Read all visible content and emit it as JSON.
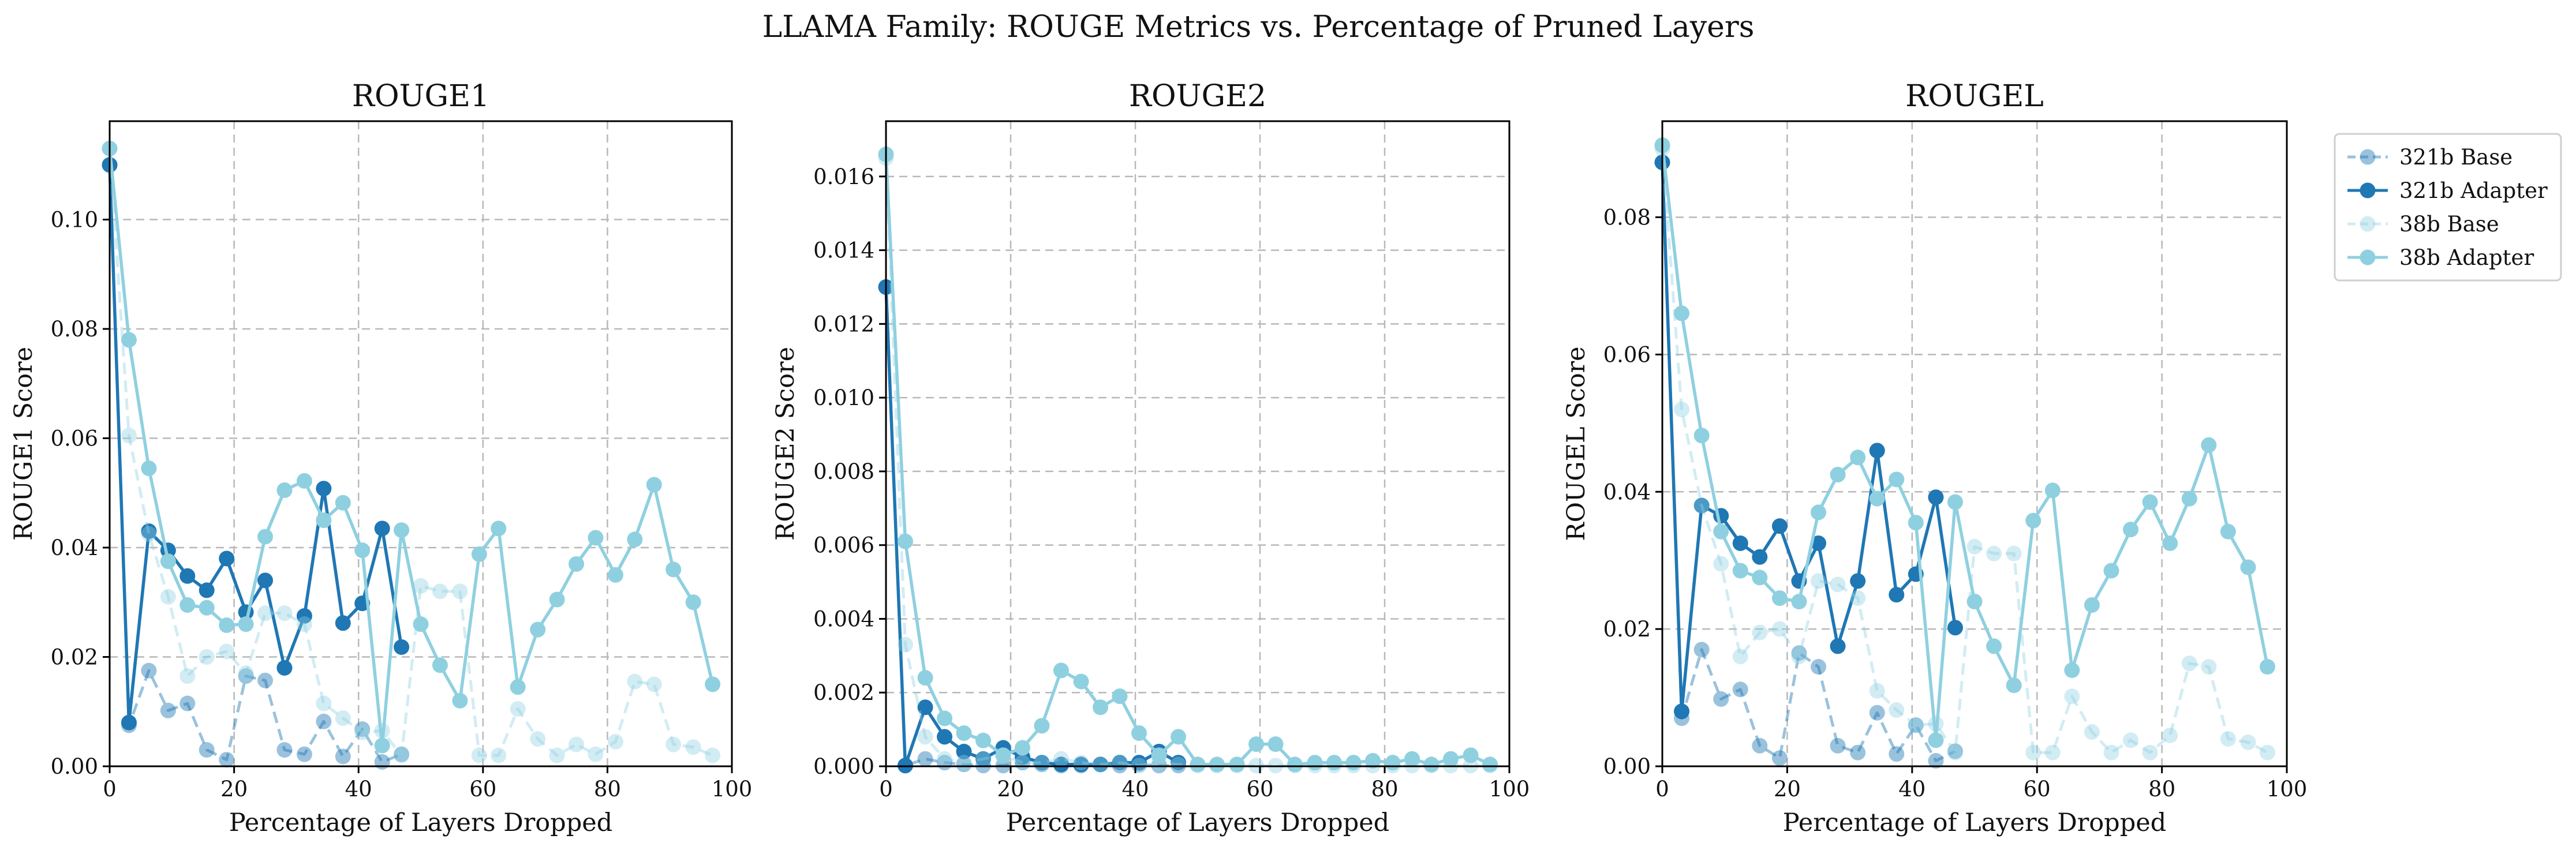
{
  "figure": {
    "title": "LLAMA Family: ROUGE Metrics vs. Percentage of Pruned Layers"
  },
  "colors": {
    "dark": "#1f77b4",
    "light": "#8fd0e0",
    "axis": "#000000",
    "grid": "#b8b8b8"
  },
  "legend": {
    "placement": "outside-right-top",
    "entries": [
      {
        "label": "321b Base",
        "color": "#1f77b4",
        "style": "dashed",
        "alpha": 0.45
      },
      {
        "label": "321b Adapter",
        "color": "#1f77b4",
        "style": "solid",
        "alpha": 1.0
      },
      {
        "label": "38b Base",
        "color": "#8fd0e0",
        "style": "dashed",
        "alpha": 0.4
      },
      {
        "label": "38b Adapter",
        "color": "#8fd0e0",
        "style": "solid",
        "alpha": 1.0
      }
    ]
  },
  "chart_data": [
    {
      "type": "line",
      "title": "ROUGE1",
      "xlabel": "Percentage of Layers Dropped",
      "ylabel": "ROUGE1 Score",
      "xlim": [
        0,
        100
      ],
      "ylim": [
        0,
        0.118
      ],
      "xticks": [
        0,
        20,
        40,
        60,
        80,
        100
      ],
      "yticks": [
        0.0,
        0.02,
        0.04,
        0.06,
        0.08,
        0.1
      ],
      "tick_labels_y": [
        "0.00",
        "0.02",
        "0.04",
        "0.06",
        "0.08",
        "0.10"
      ],
      "grid": true,
      "series": [
        {
          "name": "321b Base",
          "x": [
            0,
            3.1,
            6.3,
            9.4,
            12.5,
            15.6,
            18.8,
            21.9,
            25,
            28.1,
            31.3,
            34.4,
            37.5,
            40.6,
            43.8,
            46.9
          ],
          "y": [
            0.11,
            0.0075,
            0.0175,
            0.0102,
            0.0115,
            0.003,
            0.0012,
            0.0165,
            0.0157,
            0.003,
            0.0022,
            0.0082,
            0.0018,
            0.0068,
            0.0008,
            0.0022
          ]
        },
        {
          "name": "321b Adapter",
          "x": [
            0,
            3.1,
            6.3,
            9.4,
            12.5,
            15.6,
            18.8,
            21.9,
            25,
            28.1,
            31.3,
            34.4,
            37.5,
            40.6,
            43.8,
            46.9
          ],
          "y": [
            0.11,
            0.008,
            0.043,
            0.0395,
            0.0348,
            0.0322,
            0.038,
            0.0282,
            0.034,
            0.018,
            0.0275,
            0.0508,
            0.0262,
            0.0298,
            0.0435,
            0.0218
          ]
        },
        {
          "name": "38b Base",
          "x": [
            0,
            3.1,
            6.3,
            9.4,
            12.5,
            15.6,
            18.8,
            21.9,
            25,
            28.1,
            31.3,
            34.4,
            37.5,
            40.6,
            43.8,
            46.9,
            50,
            53.1,
            56.3,
            59.4,
            62.5,
            65.6,
            68.8,
            71.9,
            75,
            78.1,
            81.3,
            84.4,
            87.5,
            90.6,
            93.8,
            96.9
          ],
          "y": [
            0.113,
            0.0605,
            0.0425,
            0.031,
            0.0165,
            0.02,
            0.021,
            0.017,
            0.028,
            0.028,
            0.026,
            0.0115,
            0.0088,
            0.0062,
            0.0065,
            0.002,
            0.033,
            0.032,
            0.032,
            0.002,
            0.002,
            0.0105,
            0.005,
            0.002,
            0.004,
            0.0022,
            0.0045,
            0.0155,
            0.015,
            0.004,
            0.0035,
            0.002
          ]
        },
        {
          "name": "38b Adapter",
          "x": [
            0,
            3.1,
            6.3,
            9.4,
            12.5,
            15.6,
            18.8,
            21.9,
            25,
            28.1,
            31.3,
            34.4,
            37.5,
            40.6,
            43.8,
            46.9,
            50,
            53.1,
            56.3,
            59.4,
            62.5,
            65.6,
            68.8,
            71.9,
            75,
            78.1,
            81.3,
            84.4,
            87.5,
            90.6,
            93.8,
            96.9
          ],
          "y": [
            0.113,
            0.078,
            0.0545,
            0.0375,
            0.0295,
            0.029,
            0.0258,
            0.026,
            0.042,
            0.0505,
            0.0522,
            0.045,
            0.0482,
            0.0395,
            0.0038,
            0.0432,
            0.026,
            0.0185,
            0.012,
            0.0388,
            0.0435,
            0.0145,
            0.025,
            0.0305,
            0.037,
            0.0418,
            0.035,
            0.0415,
            0.0515,
            0.036,
            0.03,
            0.015
          ]
        }
      ]
    },
    {
      "type": "line",
      "title": "ROUGE2",
      "xlabel": "Percentage of Layers Dropped",
      "ylabel": "ROUGE2 Score",
      "xlim": [
        0,
        100
      ],
      "ylim": [
        0,
        0.0175
      ],
      "xticks": [
        0,
        20,
        40,
        60,
        80,
        100
      ],
      "yticks": [
        0.0,
        0.002,
        0.004,
        0.006,
        0.008,
        0.01,
        0.012,
        0.014,
        0.016
      ],
      "tick_labels_y": [
        "0.000",
        "0.002",
        "0.004",
        "0.006",
        "0.008",
        "0.010",
        "0.012",
        "0.014",
        "0.016"
      ],
      "grid": true,
      "series": [
        {
          "name": "321b Base",
          "x": [
            0,
            3.1,
            6.3,
            9.4,
            12.5,
            15.6,
            18.8,
            21.9,
            25,
            28.1,
            31.3,
            34.4,
            37.5,
            40.6,
            43.8,
            46.9
          ],
          "y": [
            0.013,
            2e-05,
            0.0002,
            0.0001,
            5e-05,
            2e-05,
            2e-05,
            0.0001,
            5e-05,
            2e-05,
            2e-05,
            5e-05,
            2e-05,
            5e-05,
            2e-05,
            2e-05
          ]
        },
        {
          "name": "321b Adapter",
          "x": [
            0,
            3.1,
            6.3,
            9.4,
            12.5,
            15.6,
            18.8,
            21.9,
            25,
            28.1,
            31.3,
            34.4,
            37.5,
            40.6,
            43.8,
            46.9
          ],
          "y": [
            0.013,
            2e-05,
            0.0016,
            0.0008,
            0.0004,
            0.0002,
            0.0005,
            0.00025,
            0.0001,
            5e-05,
            5e-05,
            5e-05,
            0.0001,
            0.0001,
            0.0004,
            0.0001
          ]
        },
        {
          "name": "38b Base",
          "x": [
            0,
            3.1,
            6.3,
            9.4,
            12.5,
            15.6,
            18.8,
            21.9,
            25,
            28.1,
            31.3,
            34.4,
            37.5,
            40.6,
            43.8,
            46.9,
            50,
            53.1,
            56.3,
            59.4,
            62.5,
            65.6,
            68.8,
            71.9,
            75,
            78.1,
            81.3,
            84.4,
            87.5,
            90.6,
            93.8,
            96.9
          ],
          "y": [
            0.0165,
            0.0033,
            0.0008,
            0.0002,
            0.0001,
            0.0002,
            0.0003,
            0.0001,
            0.0001,
            0.0002,
            0.0001,
            5e-05,
            0.0001,
            2e-05,
            0.0001,
            5e-05,
            2e-05,
            2e-05,
            2e-05,
            2e-05,
            2e-05,
            2e-05,
            2e-05,
            2e-05,
            2e-05,
            2e-05,
            2e-05,
            2e-05,
            2e-05,
            2e-05,
            2e-05,
            2e-05
          ]
        },
        {
          "name": "38b Adapter",
          "x": [
            0,
            3.1,
            6.3,
            9.4,
            12.5,
            15.6,
            18.8,
            21.9,
            25,
            28.1,
            31.3,
            34.4,
            37.5,
            40.6,
            43.8,
            46.9,
            50,
            53.1,
            56.3,
            59.4,
            62.5,
            65.6,
            68.8,
            71.9,
            75,
            78.1,
            81.3,
            84.4,
            87.5,
            90.6,
            93.8,
            96.9
          ],
          "y": [
            0.0166,
            0.0061,
            0.0024,
            0.0013,
            0.0009,
            0.0007,
            0.0003,
            0.0005,
            0.0011,
            0.0026,
            0.0023,
            0.0016,
            0.0019,
            0.0009,
            0.0003,
            0.0008,
            5e-05,
            5e-05,
            5e-05,
            0.0006,
            0.0006,
            5e-05,
            0.0001,
            0.0001,
            0.0001,
            0.00015,
            0.0001,
            0.0002,
            5e-05,
            0.0002,
            0.0003,
            5e-05
          ]
        }
      ]
    },
    {
      "type": "line",
      "title": "ROUGEL",
      "xlabel": "Percentage of Layers Dropped",
      "ylabel": "ROUGEL Score",
      "xlim": [
        0,
        100
      ],
      "ylim": [
        0,
        0.094
      ],
      "xticks": [
        0,
        20,
        40,
        60,
        80,
        100
      ],
      "yticks": [
        0.0,
        0.02,
        0.04,
        0.06,
        0.08
      ],
      "tick_labels_y": [
        "0.00",
        "0.02",
        "0.04",
        "0.06",
        "0.08"
      ],
      "grid": true,
      "series": [
        {
          "name": "321b Base",
          "x": [
            0,
            3.1,
            6.3,
            9.4,
            12.5,
            15.6,
            18.8,
            21.9,
            25,
            28.1,
            31.3,
            34.4,
            37.5,
            40.6,
            43.8,
            46.9
          ],
          "y": [
            0.088,
            0.007,
            0.017,
            0.0098,
            0.0112,
            0.003,
            0.0012,
            0.0165,
            0.0145,
            0.003,
            0.002,
            0.0078,
            0.0018,
            0.006,
            0.0008,
            0.0022
          ]
        },
        {
          "name": "321b Adapter",
          "x": [
            0,
            3.1,
            6.3,
            9.4,
            12.5,
            15.6,
            18.8,
            21.9,
            25,
            28.1,
            31.3,
            34.4,
            37.5,
            40.6,
            43.8,
            46.9
          ],
          "y": [
            0.088,
            0.008,
            0.038,
            0.0365,
            0.0325,
            0.0305,
            0.035,
            0.027,
            0.0325,
            0.0175,
            0.027,
            0.046,
            0.025,
            0.028,
            0.0392,
            0.0202
          ]
        },
        {
          "name": "38b Base",
          "x": [
            0,
            3.1,
            6.3,
            9.4,
            12.5,
            15.6,
            18.8,
            21.9,
            25,
            28.1,
            31.3,
            34.4,
            37.5,
            40.6,
            43.8,
            46.9,
            50,
            53.1,
            56.3,
            59.4,
            62.5,
            65.6,
            68.8,
            71.9,
            75,
            78.1,
            81.3,
            84.4,
            87.5,
            90.6,
            93.8,
            96.9
          ],
          "y": [
            0.09,
            0.052,
            0.038,
            0.0295,
            0.016,
            0.0195,
            0.02,
            0.016,
            0.027,
            0.0265,
            0.0245,
            0.011,
            0.0082,
            0.006,
            0.0062,
            0.002,
            0.032,
            0.031,
            0.031,
            0.002,
            0.002,
            0.0102,
            0.005,
            0.002,
            0.0038,
            0.002,
            0.0045,
            0.015,
            0.0145,
            0.004,
            0.0035,
            0.002
          ]
        },
        {
          "name": "38b Adapter",
          "x": [
            0,
            3.1,
            6.3,
            9.4,
            12.5,
            15.6,
            18.8,
            21.9,
            25,
            28.1,
            31.3,
            34.4,
            37.5,
            40.6,
            43.8,
            46.9,
            50,
            53.1,
            56.3,
            59.4,
            62.5,
            65.6,
            68.8,
            71.9,
            75,
            78.1,
            81.3,
            84.4,
            87.5,
            90.6,
            93.8,
            96.9
          ],
          "y": [
            0.0905,
            0.066,
            0.0482,
            0.0342,
            0.0285,
            0.0275,
            0.0245,
            0.024,
            0.037,
            0.0425,
            0.045,
            0.039,
            0.0418,
            0.0355,
            0.0038,
            0.0385,
            0.024,
            0.0175,
            0.0118,
            0.0358,
            0.0402,
            0.014,
            0.0235,
            0.0285,
            0.0345,
            0.0385,
            0.0325,
            0.039,
            0.0468,
            0.0342,
            0.029,
            0.0145
          ]
        }
      ]
    }
  ]
}
